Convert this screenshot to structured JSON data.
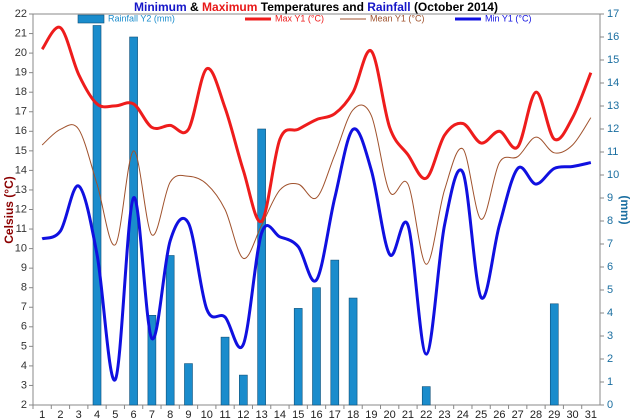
{
  "chart_data": {
    "type": "bar_line",
    "title_parts": [
      {
        "text": "Minimum",
        "color": "#1515c8"
      },
      {
        "text": "&",
        "color": "#000000"
      },
      {
        "text": "Maximum",
        "color": "#e81818"
      },
      {
        "text": "Temperatures and",
        "color": "#000000"
      },
      {
        "text": "Rainfall",
        "color": "#1515c8"
      },
      {
        "text": "(October 2014)",
        "color": "#000000"
      }
    ],
    "y_label": "Celsius (°C)",
    "y2_label": "(mm)",
    "categories": [
      1,
      2,
      3,
      4,
      5,
      6,
      7,
      8,
      9,
      10,
      11,
      12,
      13,
      14,
      15,
      16,
      17,
      18,
      19,
      20,
      21,
      22,
      23,
      24,
      25,
      26,
      27,
      28,
      29,
      30,
      31
    ],
    "ylim": [
      2,
      22
    ],
    "yticks": [
      2,
      3,
      4,
      5,
      6,
      7,
      8,
      9,
      10,
      11,
      12,
      13,
      14,
      15,
      16,
      17,
      18,
      19,
      20,
      21,
      22
    ],
    "y2lim": [
      0,
      17
    ],
    "y2ticks": [
      0,
      1,
      2,
      3,
      4,
      5,
      6,
      7,
      8,
      9,
      10,
      11,
      12,
      13,
      14,
      15,
      16,
      17
    ],
    "series": [
      {
        "name": "Rainfall Y2 (mm)",
        "type": "bar",
        "axis": "y2",
        "color": "#1a8ccc",
        "values": [
          0,
          0,
          0,
          16.5,
          0,
          16.0,
          3.9,
          6.5,
          1.8,
          0,
          2.95,
          1.3,
          12.0,
          0,
          4.2,
          5.1,
          6.3,
          4.65,
          0,
          0,
          0,
          0.8,
          0,
          0,
          0,
          0,
          0,
          0,
          4.4,
          0,
          0
        ]
      },
      {
        "name": "Max Y1 (°C)",
        "type": "line",
        "color": "#ee1c1c",
        "width": 3,
        "values": [
          20.2,
          21.3,
          18.9,
          17.4,
          17.3,
          17.4,
          16.2,
          16.3,
          16.1,
          19.2,
          17.2,
          14.0,
          11.4,
          15.6,
          16.1,
          16.6,
          16.9,
          18.0,
          20.1,
          16.2,
          14.8,
          13.6,
          15.8,
          16.4,
          15.4,
          16.0,
          15.2,
          18.0,
          15.6,
          16.7,
          19.0
        ]
      },
      {
        "name": "Mean Y1 (°C)",
        "type": "line",
        "color": "#a0522d",
        "width": 1,
        "values": [
          15.3,
          16.1,
          16.1,
          13.3,
          10.2,
          15.0,
          10.7,
          13.4,
          13.7,
          13.3,
          12.0,
          9.5,
          11.2,
          13.0,
          13.3,
          12.6,
          14.8,
          17.1,
          16.8,
          12.9,
          13.3,
          9.2,
          13.0,
          15.1,
          11.5,
          14.4,
          14.7,
          15.7,
          14.9,
          15.3,
          16.7
        ]
      },
      {
        "name": "Min Y1 (°C)",
        "type": "line",
        "color": "#1010e0",
        "width": 3,
        "values": [
          10.5,
          10.9,
          13.2,
          9.7,
          3.3,
          12.6,
          5.4,
          10.4,
          11.3,
          6.9,
          6.5,
          5.1,
          10.8,
          10.6,
          10.1,
          8.4,
          12.6,
          16.1,
          14.0,
          9.7,
          11.2,
          4.6,
          11.2,
          13.9,
          7.5,
          11.2,
          14.1,
          13.3,
          14.1,
          14.2,
          14.4
        ]
      }
    ]
  }
}
